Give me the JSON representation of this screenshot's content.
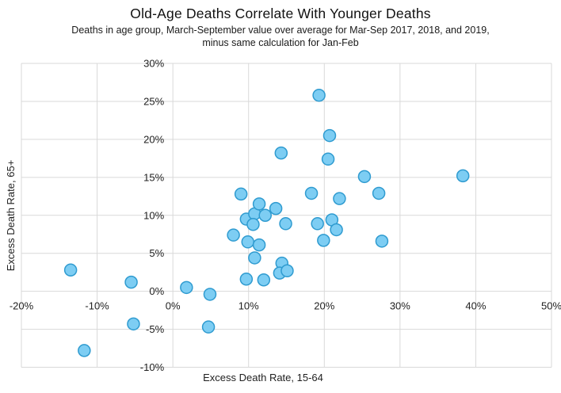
{
  "chart": {
    "title": "Old-Age Deaths Correlate With Younger Deaths",
    "subtitle_line1": "Deaths in age group, March-September value over average for Mar-Sep 2017, 2018, and 2019,",
    "subtitle_line2": "minus same calculation for Jan-Feb"
  },
  "chart_data": {
    "type": "scatter",
    "title": "Old-Age Deaths Correlate With Younger Deaths",
    "subtitle": "Deaths in age group, March-September value over average for Mar-Sep 2017, 2018, and 2019, minus same calculation for Jan-Feb",
    "xlabel": "Excess Death Rate, 15-64",
    "ylabel": "Excess Death Rate, 65+",
    "xlim": [
      -20,
      50
    ],
    "ylim": [
      -10,
      30
    ],
    "x_ticks": [
      -20,
      -10,
      0,
      10,
      20,
      30,
      40,
      50
    ],
    "x_tick_labels": [
      "-20%",
      "-10%",
      "0%",
      "10%",
      "20%",
      "30%",
      "40%",
      "50%"
    ],
    "y_ticks": [
      -10,
      -5,
      0,
      5,
      10,
      15,
      20,
      25,
      30
    ],
    "y_tick_labels": [
      "-10%",
      "-5%",
      "0%",
      "5%",
      "10%",
      "15%",
      "20%",
      "25%",
      "30%"
    ],
    "grid": true,
    "legend": "none",
    "marker_fill": "#7DCDF3",
    "marker_border": "#2F9BD0",
    "gridline_color": "#D9D9D9",
    "points": [
      [
        -13.5,
        2.8
      ],
      [
        -11.7,
        -7.8
      ],
      [
        -5.5,
        1.2
      ],
      [
        -5.2,
        -4.3
      ],
      [
        1.8,
        0.5
      ],
      [
        4.9,
        -0.4
      ],
      [
        4.7,
        -4.7
      ],
      [
        8.0,
        7.4
      ],
      [
        9.0,
        12.8
      ],
      [
        9.7,
        9.5
      ],
      [
        10.8,
        10.2
      ],
      [
        11.4,
        11.5
      ],
      [
        12.2,
        10.0
      ],
      [
        10.6,
        8.8
      ],
      [
        9.9,
        6.5
      ],
      [
        11.4,
        6.1
      ],
      [
        10.8,
        4.4
      ],
      [
        9.7,
        1.6
      ],
      [
        12.0,
        1.5
      ],
      [
        13.6,
        10.9
      ],
      [
        14.9,
        8.9
      ],
      [
        14.3,
        18.2
      ],
      [
        14.4,
        3.7
      ],
      [
        14.1,
        2.4
      ],
      [
        15.1,
        2.7
      ],
      [
        19.3,
        25.8
      ],
      [
        20.7,
        20.5
      ],
      [
        20.5,
        17.4
      ],
      [
        25.3,
        15.1
      ],
      [
        18.3,
        12.9
      ],
      [
        22.0,
        12.2
      ],
      [
        27.2,
        12.9
      ],
      [
        21.0,
        9.4
      ],
      [
        19.1,
        8.9
      ],
      [
        21.6,
        8.1
      ],
      [
        19.9,
        6.7
      ],
      [
        27.6,
        6.6
      ],
      [
        38.3,
        15.2
      ]
    ]
  }
}
